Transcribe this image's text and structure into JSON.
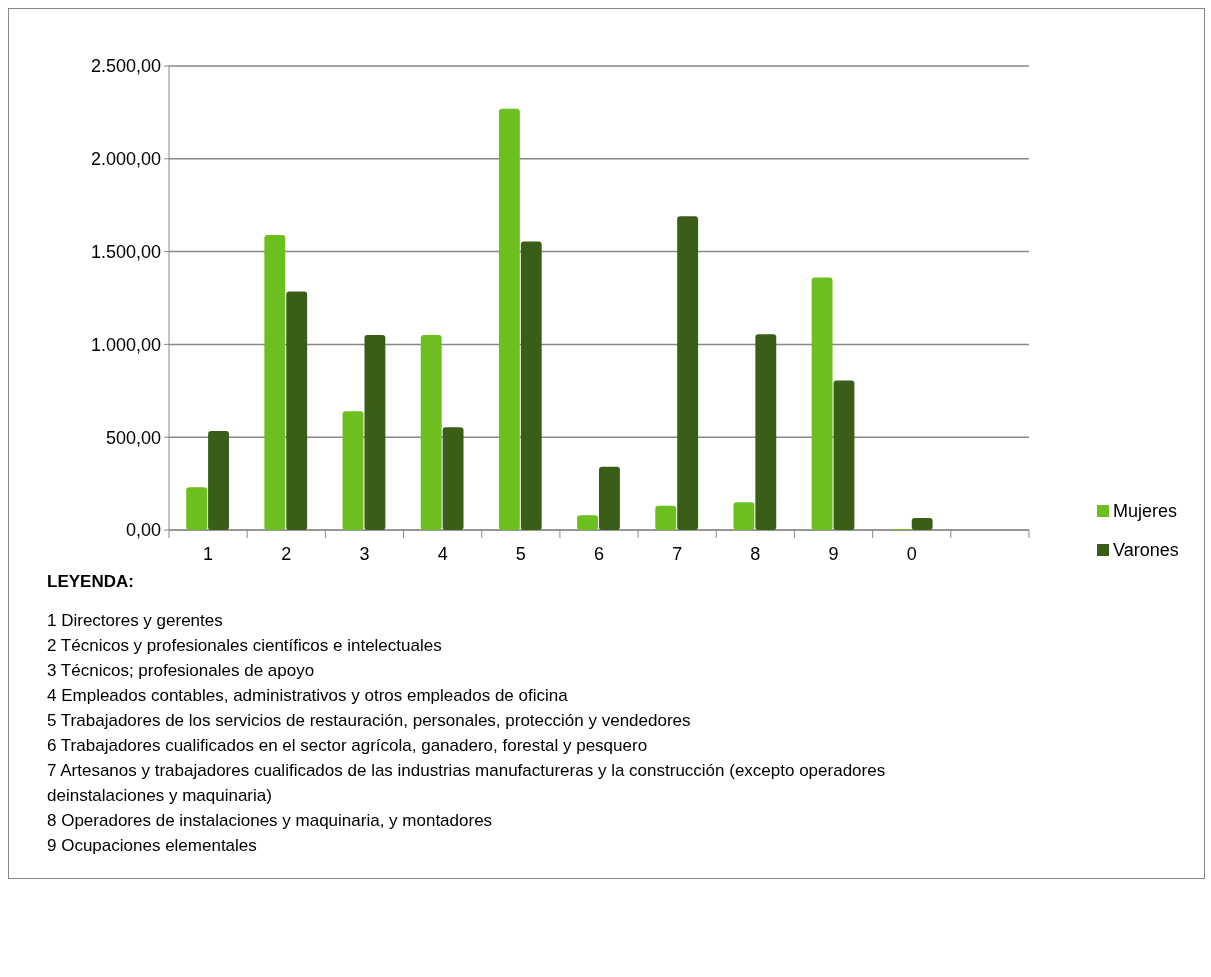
{
  "chart_data": {
    "type": "bar",
    "categories": [
      "1",
      "2",
      "3",
      "4",
      "5",
      "6",
      "7",
      "8",
      "9",
      "0"
    ],
    "series": [
      {
        "name": "Mujeres",
        "color": "#6cbf1e",
        "values": [
          230,
          1590,
          640,
          1050,
          2270,
          80,
          130,
          150,
          1360,
          5
        ]
      },
      {
        "name": "Varones",
        "color": "#3a5e18",
        "values": [
          534,
          1285,
          1050,
          554,
          1555,
          341,
          1690,
          1055,
          805,
          65
        ]
      }
    ],
    "ylim": [
      0,
      2500
    ],
    "yticks": [
      {
        "value": 0,
        "label": "0,00"
      },
      {
        "value": 500,
        "label": "500,00"
      },
      {
        "value": 1000,
        "label": "1.000,00"
      },
      {
        "value": 1500,
        "label": "1.500,00"
      },
      {
        "value": 2000,
        "label": "2.000,00"
      },
      {
        "value": 2500,
        "label": "2.500,00"
      }
    ],
    "grid": "y",
    "legend": "right",
    "annotations": [
      "LEYENDA:",
      "1 Directores y gerentes",
      "2 Técnicos y profesionales científicos e intelectuales",
      "3 Técnicos; profesionales de apoyo",
      "4 Empleados contables, administrativos y otros empleados de oficina",
      "5 Trabajadores de los servicios de restauración, personales, protección y vendedores",
      "6 Trabajadores cualificados en el sector agrícola, ganadero, forestal y pesquero",
      "7 Artesanos y trabajadores cualificados de las industrias manufactureras y la construcción (excepto operadores deinstalaciones y maquinaria)",
      "8 Operadores de instalaciones y maquinaria, y montadores",
      "9 Ocupaciones elementales"
    ]
  }
}
